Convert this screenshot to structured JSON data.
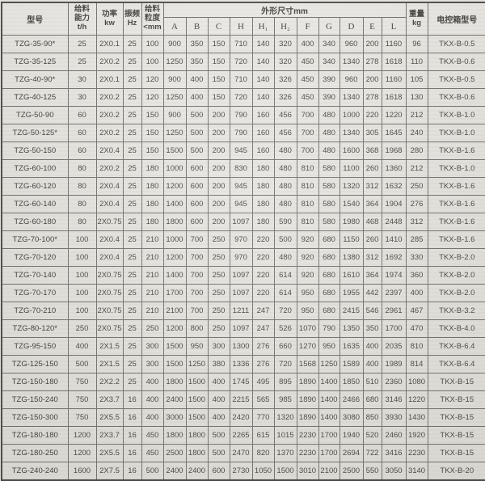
{
  "table": {
    "headers": {
      "model": "型号",
      "capacity": "给料\n能力\nt/h",
      "power": "功率\nkw",
      "frequency": "振频\nHz",
      "feed_size": "给料\n粒度\n<mm",
      "dimensions": "外形尺寸mm",
      "weight": "重量\nkg",
      "control_box": "电控箱型号"
    },
    "dim_cols": [
      "A",
      "B",
      "C",
      "H",
      "H₁",
      "H₂",
      "F",
      "G",
      "D",
      "E",
      "L"
    ],
    "rows": [
      [
        "TZG-35-90*",
        "25",
        "2X0.1",
        "25",
        "100",
        "900",
        "350",
        "150",
        "710",
        "140",
        "320",
        "400",
        "340",
        "960",
        "200",
        "1160",
        "96",
        "TKX-B-0.5"
      ],
      [
        "TZG-35-125",
        "25",
        "2X0.2",
        "25",
        "100",
        "1250",
        "350",
        "150",
        "720",
        "140",
        "320",
        "450",
        "340",
        "1340",
        "278",
        "1618",
        "110",
        "TKX-B-0.6"
      ],
      [
        "TZG-40-90*",
        "30",
        "2X0.1",
        "25",
        "120",
        "900",
        "400",
        "150",
        "710",
        "140",
        "326",
        "450",
        "390",
        "960",
        "200",
        "1160",
        "105",
        "TKX-B-0.5"
      ],
      [
        "TZG-40-125",
        "30",
        "2X0.2",
        "25",
        "120",
        "1250",
        "400",
        "150",
        "720",
        "140",
        "326",
        "450",
        "390",
        "1340",
        "278",
        "1618",
        "130",
        "TKX-B-0.6"
      ],
      [
        "TZG-50-90",
        "60",
        "2X0.2",
        "25",
        "150",
        "900",
        "500",
        "200",
        "790",
        "160",
        "456",
        "700",
        "480",
        "1000",
        "220",
        "1220",
        "212",
        "TKX-B-1.0"
      ],
      [
        "TZG-50-125*",
        "60",
        "2X0.2",
        "25",
        "150",
        "1250",
        "500",
        "200",
        "790",
        "160",
        "456",
        "700",
        "480",
        "1340",
        "305",
        "1645",
        "240",
        "TKX-B-1.0"
      ],
      [
        "TZG-50-150",
        "60",
        "2X0.4",
        "25",
        "150",
        "1500",
        "500",
        "200",
        "945",
        "160",
        "480",
        "700",
        "480",
        "1600",
        "368",
        "1968",
        "280",
        "TKX-B-1.6"
      ],
      [
        "TZG-60-100",
        "80",
        "2X0.2",
        "25",
        "180",
        "1000",
        "600",
        "200",
        "830",
        "180",
        "480",
        "810",
        "580",
        "1100",
        "260",
        "1360",
        "212",
        "TKX-B-1.0"
      ],
      [
        "TZG-60-120",
        "80",
        "2X0.4",
        "25",
        "180",
        "1200",
        "600",
        "200",
        "945",
        "180",
        "480",
        "810",
        "580",
        "1320",
        "312",
        "1632",
        "250",
        "TKX-B-1.6"
      ],
      [
        "TZG-60-140",
        "80",
        "2X0.4",
        "25",
        "180",
        "1400",
        "600",
        "200",
        "945",
        "180",
        "480",
        "810",
        "580",
        "1540",
        "364",
        "1904",
        "276",
        "TKX-B-1.6"
      ],
      [
        "TZG-60-180",
        "80",
        "2X0.75",
        "25",
        "180",
        "1800",
        "600",
        "200",
        "1097",
        "180",
        "590",
        "810",
        "580",
        "1980",
        "468",
        "2448",
        "312",
        "TKX-B-1.6"
      ],
      [
        "TZG-70-100*",
        "100",
        "2X0.4",
        "25",
        "210",
        "1000",
        "700",
        "250",
        "970",
        "220",
        "500",
        "920",
        "680",
        "1150",
        "260",
        "1410",
        "285",
        "TKX-B-1.6"
      ],
      [
        "TZG-70-120",
        "100",
        "2X0.4",
        "25",
        "210",
        "1200",
        "700",
        "250",
        "970",
        "220",
        "480",
        "920",
        "680",
        "1380",
        "312",
        "1692",
        "330",
        "TKX-B-2.0"
      ],
      [
        "TZG-70-140",
        "100",
        "2X0.75",
        "25",
        "210",
        "1400",
        "700",
        "250",
        "1097",
        "220",
        "614",
        "920",
        "680",
        "1610",
        "364",
        "1974",
        "360",
        "TKX-B-2.0"
      ],
      [
        "TZG-70-170",
        "100",
        "2X0.75",
        "25",
        "210",
        "1700",
        "700",
        "250",
        "1097",
        "220",
        "614",
        "950",
        "680",
        "1955",
        "442",
        "2397",
        "400",
        "TKX-B-2.0"
      ],
      [
        "TZG-70-210",
        "100",
        "2X0.75",
        "25",
        "210",
        "2100",
        "700",
        "250",
        "1211",
        "247",
        "720",
        "950",
        "680",
        "2415",
        "546",
        "2961",
        "467",
        "TKX-B-3.2"
      ],
      [
        "TZG-80-120*",
        "250",
        "2X0.75",
        "25",
        "250",
        "1200",
        "800",
        "250",
        "1097",
        "247",
        "526",
        "1070",
        "790",
        "1350",
        "350",
        "1700",
        "470",
        "TKX-B-4.0"
      ],
      [
        "TZG-95-150",
        "400",
        "2X1.5",
        "25",
        "300",
        "1500",
        "950",
        "300",
        "1300",
        "276",
        "660",
        "1270",
        "950",
        "1635",
        "400",
        "2035",
        "810",
        "TKX-B-6.4"
      ],
      [
        "TZG-125-150",
        "500",
        "2X1.5",
        "25",
        "300",
        "1500",
        "1250",
        "380",
        "1336",
        "276",
        "720",
        "1568",
        "1250",
        "1589",
        "400",
        "1989",
        "814",
        "TKX-B-6.4"
      ],
      [
        "TZG-150-180",
        "750",
        "2X2.2",
        "25",
        "400",
        "1800",
        "1500",
        "400",
        "1745",
        "495",
        "895",
        "1890",
        "1400",
        "1850",
        "510",
        "2360",
        "1080",
        "TKX-B-15"
      ],
      [
        "TZG-150-240",
        "750",
        "2X3.7",
        "16",
        "400",
        "2400",
        "1500",
        "400",
        "2215",
        "565",
        "985",
        "1890",
        "1400",
        "2466",
        "680",
        "3146",
        "1220",
        "TKX-B-15"
      ],
      [
        "TZG-150-300",
        "750",
        "2X5.5",
        "16",
        "400",
        "3000",
        "1500",
        "400",
        "2420",
        "770",
        "1320",
        "1890",
        "1400",
        "3080",
        "850",
        "3930",
        "1430",
        "TKX-B-15"
      ],
      [
        "TZG-180-180",
        "1200",
        "2X3.7",
        "16",
        "450",
        "1800",
        "1800",
        "500",
        "2265",
        "615",
        "1015",
        "2230",
        "1700",
        "1940",
        "520",
        "2460",
        "1920",
        "TKX-B-15"
      ],
      [
        "TZG-180-250",
        "1200",
        "2X5.5",
        "16",
        "450",
        "2500",
        "1800",
        "500",
        "2470",
        "820",
        "1370",
        "2230",
        "1700",
        "2694",
        "722",
        "3416",
        "2230",
        "TKX-B-15"
      ],
      [
        "TZG-240-240",
        "1600",
        "2X7.5",
        "16",
        "500",
        "2400",
        "2400",
        "600",
        "2730",
        "1050",
        "1500",
        "3010",
        "2100",
        "2500",
        "550",
        "3050",
        "3140",
        "TKX-B-20"
      ]
    ]
  }
}
